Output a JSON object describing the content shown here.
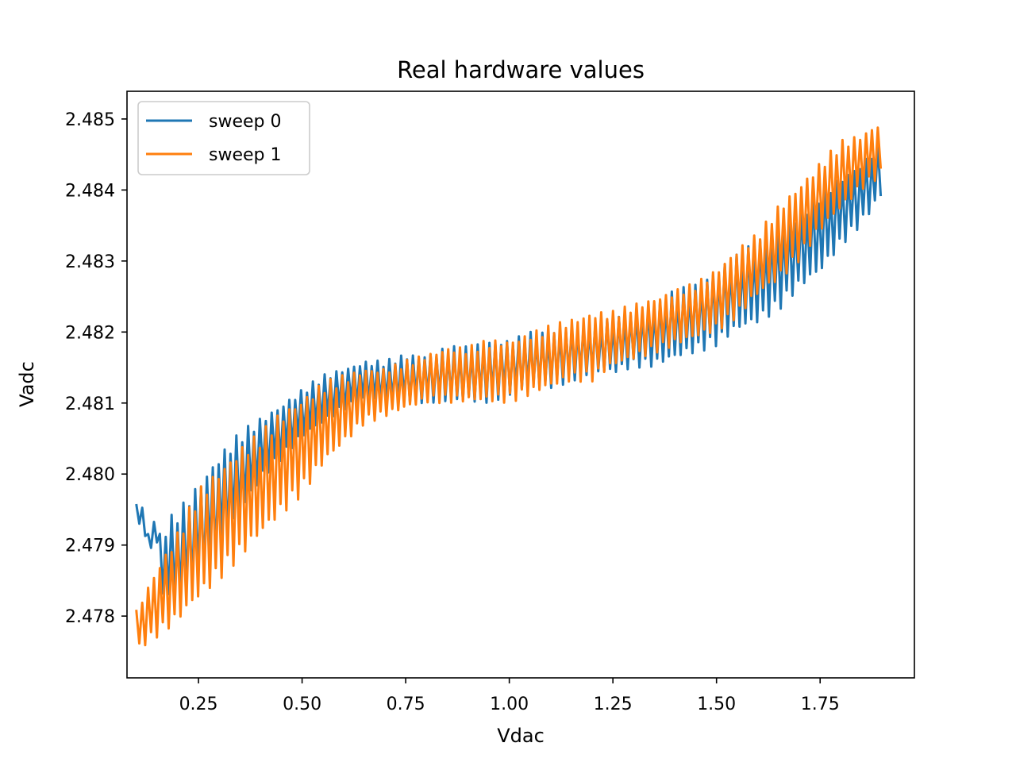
{
  "chart_data": {
    "type": "line",
    "title": "Real hardware values",
    "xlabel": "Vdac",
    "ylabel": "Vadc",
    "xlim": [
      0.0775,
      1.9775
    ],
    "ylim": [
      2.47713,
      2.48539
    ],
    "x_ticks": [
      0.25,
      0.5,
      0.75,
      1.0,
      1.25,
      1.5,
      1.75
    ],
    "x_tick_labels": [
      "0.25",
      "0.50",
      "0.75",
      "1.00",
      "1.25",
      "1.50",
      "1.75"
    ],
    "y_ticks": [
      2.478,
      2.479,
      2.48,
      2.481,
      2.482,
      2.483,
      2.484,
      2.485
    ],
    "y_tick_labels": [
      "2.478",
      "2.479",
      "2.480",
      "2.481",
      "2.482",
      "2.483",
      "2.484",
      "2.485"
    ],
    "grid": false,
    "legend": {
      "position": "top-left"
    },
    "series": [
      {
        "name": "sweep 0",
        "color": "#1f77b4",
        "x": [
          0.1,
          0.11,
          0.12,
          0.13,
          0.14,
          0.15,
          0.16,
          0.18,
          0.2,
          0.25,
          0.3,
          0.35,
          0.4,
          0.45,
          0.5,
          0.55,
          0.6,
          0.65,
          0.7,
          0.75,
          0.8,
          0.85,
          0.9,
          0.95,
          1.0,
          1.05,
          1.1,
          1.15,
          1.2,
          1.25,
          1.3,
          1.35,
          1.4,
          1.45,
          1.5,
          1.55,
          1.6,
          1.65,
          1.7,
          1.75,
          1.8,
          1.85,
          1.9
        ],
        "upper": [
          2.4796,
          2.4796,
          2.4795,
          2.4791,
          2.4794,
          2.4793,
          2.4791,
          2.4794,
          2.4795,
          2.4799,
          2.4803,
          2.4806,
          2.4808,
          2.481,
          2.4812,
          2.4814,
          2.4815,
          2.4816,
          2.4816,
          2.4817,
          2.4817,
          2.4818,
          2.4818,
          2.4819,
          2.4819,
          2.482,
          2.482,
          2.4821,
          2.4821,
          2.4822,
          2.4823,
          2.4824,
          2.4826,
          2.4827,
          2.4829,
          2.4831,
          2.4833,
          2.4835,
          2.4837,
          2.484,
          2.4842,
          2.4844,
          2.4847
        ],
        "lower": [
          2.4793,
          2.4793,
          2.4791,
          2.4789,
          2.479,
          2.479,
          2.4783,
          2.4782,
          2.4782,
          2.4785,
          2.4789,
          2.4794,
          2.4799,
          2.4802,
          2.4805,
          2.4807,
          2.4809,
          2.481,
          2.481,
          2.481,
          2.481,
          2.481,
          2.481,
          2.481,
          2.4811,
          2.4812,
          2.4812,
          2.4813,
          2.4814,
          2.4814,
          2.4815,
          2.4815,
          2.4816,
          2.4817,
          2.4818,
          2.482,
          2.4821,
          2.4823,
          2.4826,
          2.4828,
          2.4832,
          2.4835,
          2.4839
        ]
      },
      {
        "name": "sweep 1",
        "color": "#ff7f0e",
        "x": [
          0.1,
          0.15,
          0.2,
          0.25,
          0.3,
          0.35,
          0.4,
          0.45,
          0.5,
          0.55,
          0.6,
          0.65,
          0.7,
          0.75,
          0.8,
          0.85,
          0.9,
          0.95,
          1.0,
          1.05,
          1.1,
          1.15,
          1.2,
          1.25,
          1.3,
          1.35,
          1.4,
          1.45,
          1.5,
          1.55,
          1.6,
          1.65,
          1.7,
          1.75,
          1.8,
          1.85,
          1.9
        ],
        "upper": [
          2.4781,
          2.4787,
          2.4792,
          2.4798,
          2.4801,
          2.4804,
          2.4806,
          2.4809,
          2.4811,
          2.4813,
          2.4814,
          2.4815,
          2.4815,
          2.4816,
          2.4817,
          2.4818,
          2.4818,
          2.4819,
          2.4819,
          2.482,
          2.4821,
          2.4822,
          2.4823,
          2.4823,
          2.4824,
          2.4825,
          2.4826,
          2.4827,
          2.4829,
          2.4832,
          2.4834,
          2.4838,
          2.4841,
          2.4844,
          2.4847,
          2.4848,
          2.485
        ],
        "lower": [
          2.4775,
          2.4777,
          2.4779,
          2.4782,
          2.4785,
          2.4788,
          2.4791,
          2.4794,
          2.4797,
          2.4801,
          2.4804,
          2.4807,
          2.4808,
          2.4809,
          2.481,
          2.481,
          2.481,
          2.481,
          2.481,
          2.4811,
          2.4812,
          2.4813,
          2.4813,
          2.4815,
          2.4816,
          2.4817,
          2.4818,
          2.4819,
          2.482,
          2.4822,
          2.4825,
          2.4827,
          2.483,
          2.4834,
          2.4837,
          2.484,
          2.4842
        ]
      }
    ]
  }
}
